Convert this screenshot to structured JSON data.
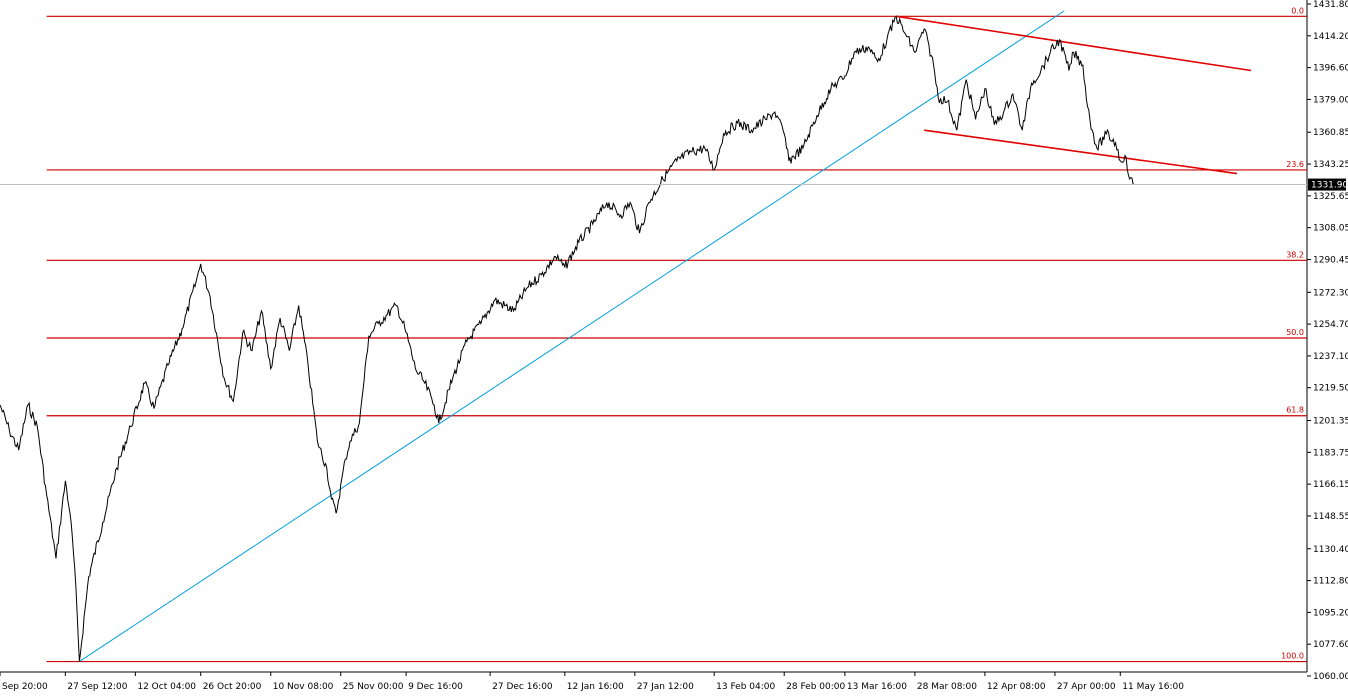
{
  "chart_data": {
    "type": "line",
    "series": [
      {
        "color": "#000000",
        "points": [
          [
            "2010-09-13",
            1210
          ],
          [
            "2010-09-15",
            1196
          ],
          [
            "2010-09-17",
            1185
          ],
          [
            "2010-09-19",
            1210
          ],
          [
            "2010-09-21",
            1198
          ],
          [
            "2010-09-23",
            1160
          ],
          [
            "2010-09-25",
            1125
          ],
          [
            "2010-09-27",
            1168
          ],
          [
            "2010-09-28",
            1150
          ],
          [
            "2010-09-29",
            1120
          ],
          [
            "2010-09-30",
            1068
          ],
          [
            "2010-10-02",
            1115
          ],
          [
            "2010-10-05",
            1145
          ],
          [
            "2010-10-08",
            1175
          ],
          [
            "2010-10-11",
            1198
          ],
          [
            "2010-10-14",
            1222
          ],
          [
            "2010-10-16",
            1208
          ],
          [
            "2010-10-19",
            1232
          ],
          [
            "2010-10-22",
            1252
          ],
          [
            "2010-10-25",
            1278
          ],
          [
            "2010-10-26",
            1288
          ],
          [
            "2010-10-28",
            1270
          ],
          [
            "2010-10-31",
            1225
          ],
          [
            "2010-11-02",
            1212
          ],
          [
            "2010-11-04",
            1250
          ],
          [
            "2010-11-06",
            1240
          ],
          [
            "2010-11-08",
            1262
          ],
          [
            "2010-11-10",
            1230
          ],
          [
            "2010-11-12",
            1258
          ],
          [
            "2010-11-14",
            1240
          ],
          [
            "2010-11-16",
            1265
          ],
          [
            "2010-11-18",
            1232
          ],
          [
            "2010-11-20",
            1190
          ],
          [
            "2010-11-22",
            1175
          ],
          [
            "2010-11-23",
            1158
          ],
          [
            "2010-11-24",
            1150
          ],
          [
            "2010-11-26",
            1180
          ],
          [
            "2010-11-27",
            1190
          ],
          [
            "2010-11-29",
            1200
          ],
          [
            "2010-12-01",
            1248
          ],
          [
            "2010-12-03",
            1255
          ],
          [
            "2010-12-05",
            1260
          ],
          [
            "2010-12-07",
            1265
          ],
          [
            "2010-12-09",
            1250
          ],
          [
            "2010-12-11",
            1230
          ],
          [
            "2010-12-13",
            1222
          ],
          [
            "2010-12-15",
            1210
          ],
          [
            "2010-12-16",
            1200
          ],
          [
            "2010-12-19",
            1225
          ],
          [
            "2010-12-22",
            1245
          ],
          [
            "2010-12-25",
            1255
          ],
          [
            "2010-12-28",
            1268
          ],
          [
            "2011-01-01",
            1262
          ],
          [
            "2011-01-04",
            1275
          ],
          [
            "2011-01-07",
            1282
          ],
          [
            "2011-01-10",
            1292
          ],
          [
            "2011-01-12",
            1286
          ],
          [
            "2011-01-15",
            1300
          ],
          [
            "2011-01-18",
            1310
          ],
          [
            "2011-01-21",
            1322
          ],
          [
            "2011-01-24",
            1315
          ],
          [
            "2011-01-26",
            1322
          ],
          [
            "2011-01-28",
            1305
          ],
          [
            "2011-01-30",
            1322
          ],
          [
            "2011-02-02",
            1335
          ],
          [
            "2011-02-05",
            1345
          ],
          [
            "2011-02-08",
            1350
          ],
          [
            "2011-02-11",
            1352
          ],
          [
            "2011-02-13",
            1340
          ],
          [
            "2011-02-15",
            1360
          ],
          [
            "2011-02-18",
            1366
          ],
          [
            "2011-02-21",
            1362
          ],
          [
            "2011-02-24",
            1368
          ],
          [
            "2011-02-26",
            1372
          ],
          [
            "2011-02-28",
            1360
          ],
          [
            "2011-03-01",
            1345
          ],
          [
            "2011-03-04",
            1352
          ],
          [
            "2011-03-07",
            1370
          ],
          [
            "2011-03-10",
            1385
          ],
          [
            "2011-03-13",
            1392
          ],
          [
            "2011-03-15",
            1405
          ],
          [
            "2011-03-18",
            1408
          ],
          [
            "2011-03-20",
            1400
          ],
          [
            "2011-03-22",
            1412
          ],
          [
            "2011-03-24",
            1425
          ],
          [
            "2011-03-26",
            1415
          ],
          [
            "2011-03-28",
            1405
          ],
          [
            "2011-03-30",
            1418
          ],
          [
            "2011-04-01",
            1398
          ],
          [
            "2011-04-02",
            1380
          ],
          [
            "2011-04-04",
            1378
          ],
          [
            "2011-04-06",
            1362
          ],
          [
            "2011-04-08",
            1390
          ],
          [
            "2011-04-10",
            1368
          ],
          [
            "2011-04-12",
            1385
          ],
          [
            "2011-04-14",
            1365
          ],
          [
            "2011-04-16",
            1372
          ],
          [
            "2011-04-18",
            1382
          ],
          [
            "2011-04-20",
            1362
          ],
          [
            "2011-04-22",
            1388
          ],
          [
            "2011-04-24",
            1395
          ],
          [
            "2011-04-26",
            1405
          ],
          [
            "2011-04-28",
            1412
          ],
          [
            "2011-04-30",
            1395
          ],
          [
            "2011-05-01",
            1405
          ],
          [
            "2011-05-03",
            1398
          ],
          [
            "2011-05-04",
            1375
          ],
          [
            "2011-05-05",
            1362
          ],
          [
            "2011-05-06",
            1352
          ],
          [
            "2011-05-08",
            1360
          ],
          [
            "2011-05-10",
            1355
          ],
          [
            "2011-05-11",
            1345
          ],
          [
            "2011-05-12",
            1348
          ],
          [
            "2011-05-13",
            1335
          ],
          [
            "2011-05-14",
            1331.9
          ]
        ]
      }
    ],
    "y_axis": {
      "ylim": [
        1060,
        1431.8
      ],
      "ticks": [
        "1431.80",
        "1414.20",
        "1396.60",
        "1379.00",
        "1360.85",
        "1343.25",
        "1325.65",
        "1308.05",
        "1290.45",
        "1272.30",
        "1254.70",
        "1237.10",
        "1219.50",
        "1201.35",
        "1183.75",
        "1166.15",
        "1148.55",
        "1130.40",
        "1112.80",
        "1095.20",
        "1077.60",
        "1060.00"
      ]
    },
    "x_axis": {
      "xlim": [
        "2010-09-13",
        "2011-06-20"
      ],
      "ticks": [
        {
          "date": "2010-09-13",
          "label": "Sep 20:00"
        },
        {
          "date": "2010-09-27",
          "label": "27 Sep 12:00"
        },
        {
          "date": "2010-10-12",
          "label": "12 Oct 04:00"
        },
        {
          "date": "2010-10-26",
          "label": "26 Oct 20:00"
        },
        {
          "date": "2010-11-10",
          "label": "10 Nov 08:00"
        },
        {
          "date": "2010-11-25",
          "label": "25 Nov 00:00"
        },
        {
          "date": "2010-12-09",
          "label": "9 Dec 16:00"
        },
        {
          "date": "2010-12-27",
          "label": "27 Dec 16:00"
        },
        {
          "date": "2011-01-12",
          "label": "12 Jan 16:00"
        },
        {
          "date": "2011-01-27",
          "label": "27 Jan 12:00"
        },
        {
          "date": "2011-02-13",
          "label": "13 Feb 04:00"
        },
        {
          "date": "2011-02-28",
          "label": "28 Feb 00:00"
        },
        {
          "date": "2011-03-13",
          "label": "13 Mar 16:00"
        },
        {
          "date": "2011-03-28",
          "label": "28 Mar 08:00"
        },
        {
          "date": "2011-04-12",
          "label": "12 Apr 08:00"
        },
        {
          "date": "2011-04-27",
          "label": "27 Apr 00:00"
        },
        {
          "date": "2011-05-11",
          "label": "11 May 16:00"
        }
      ]
    },
    "fibonacci_levels": [
      {
        "label": "0.0",
        "value": 1425
      },
      {
        "label": "23.6",
        "value": 1340
      },
      {
        "label": "38.2",
        "value": 1290
      },
      {
        "label": "50.0",
        "value": 1247
      },
      {
        "label": "61.8",
        "value": 1204
      },
      {
        "label": "100.0",
        "value": 1068
      }
    ],
    "trendlines": [
      {
        "name": "blue",
        "color": "#00a0e0",
        "from": [
          "2010-09-30",
          1068
        ],
        "to": [
          "2011-04-29",
          1428
        ]
      },
      {
        "name": "upper-red",
        "color": "#e00000",
        "from": [
          "2011-03-24",
          1425
        ],
        "to": [
          "2011-06-08",
          1395
        ]
      },
      {
        "name": "lower-red",
        "color": "#e00000",
        "from": [
          "2011-03-30",
          1362
        ],
        "to": [
          "2011-06-05",
          1338
        ]
      }
    ],
    "current_price": {
      "label": "1331.90",
      "value": 1331.9
    },
    "grid": false,
    "colors": {
      "fib": "#cc0000",
      "trend_red": "#e00000",
      "trend_blue": "#00a0e0",
      "price": "#000000"
    }
  }
}
